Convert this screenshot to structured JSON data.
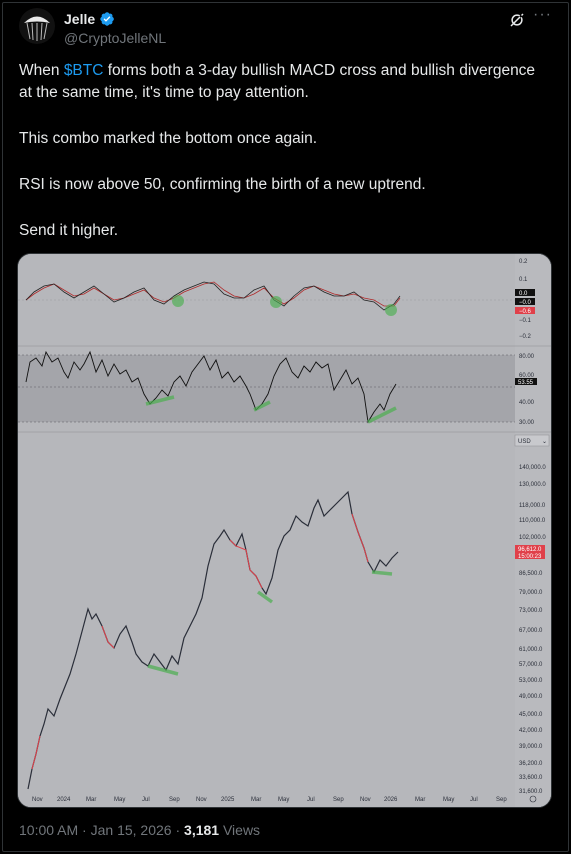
{
  "author": {
    "name": "Jelle",
    "handle": "@CryptoJelleNL"
  },
  "icons": {
    "verified": "verified-badge-icon",
    "grok": "grok-icon",
    "more": "more-icon",
    "avatar": "avatar-image"
  },
  "tweet": {
    "line1_prefix": "When ",
    "cashtag": "$BTC",
    "line1_suffix": " forms both a 3-day bullish MACD cross and bullish divergence at the same time, it's time to pay attention.",
    "p2": "This combo marked the bottom once again.",
    "p3": "RSI is now above 50, confirming the birth of a new uptrend.",
    "p4": "Send it higher."
  },
  "chart": {
    "macd_axis": [
      "0.2",
      "0.1",
      "−0.1",
      "−0.2"
    ],
    "macd_tags": [
      "0.0",
      "−0.0",
      "−0.6"
    ],
    "rsi_axis": [
      "80.00",
      "60.00",
      "40.00",
      "30.00"
    ],
    "rsi_tag": "53.55",
    "currency": "USD",
    "price_axis": [
      "140,000.0",
      "130,000.0",
      "118,000.0",
      "110,000.0",
      "102,000.0",
      "86,500.0",
      "79,000.0",
      "73,000.0",
      "67,000.0",
      "61,000.0",
      "57,000.0",
      "53,000.0",
      "49,000.0",
      "45,000.0",
      "42,000.0",
      "39,000.0",
      "36,200.0",
      "33,600.0",
      "31,600.0"
    ],
    "price_tag": "96,612.0",
    "price_tag_sub": "15:00:23",
    "x_axis": [
      "Nov",
      "2024",
      "Mar",
      "May",
      "Jul",
      "Sep",
      "Nov",
      "2025",
      "Mar",
      "May",
      "Jul",
      "Sep",
      "Nov",
      "2026",
      "Mar",
      "May",
      "Jul",
      "Sep"
    ]
  },
  "colors": {
    "background": "#000000",
    "text": "#e7e9ea",
    "muted": "#71767b",
    "link": "#1d9bf0",
    "chart_bg": "#b6b7bb",
    "candle_up": "#2a2e39",
    "candle_down": "#e0404a",
    "divergence": "#4caf50"
  },
  "footer": {
    "time": "10:00 AM",
    "sep1": " · ",
    "date": "Jan 15, 2026",
    "sep2": " · ",
    "views_count": "3,181",
    "views_label": " Views"
  }
}
